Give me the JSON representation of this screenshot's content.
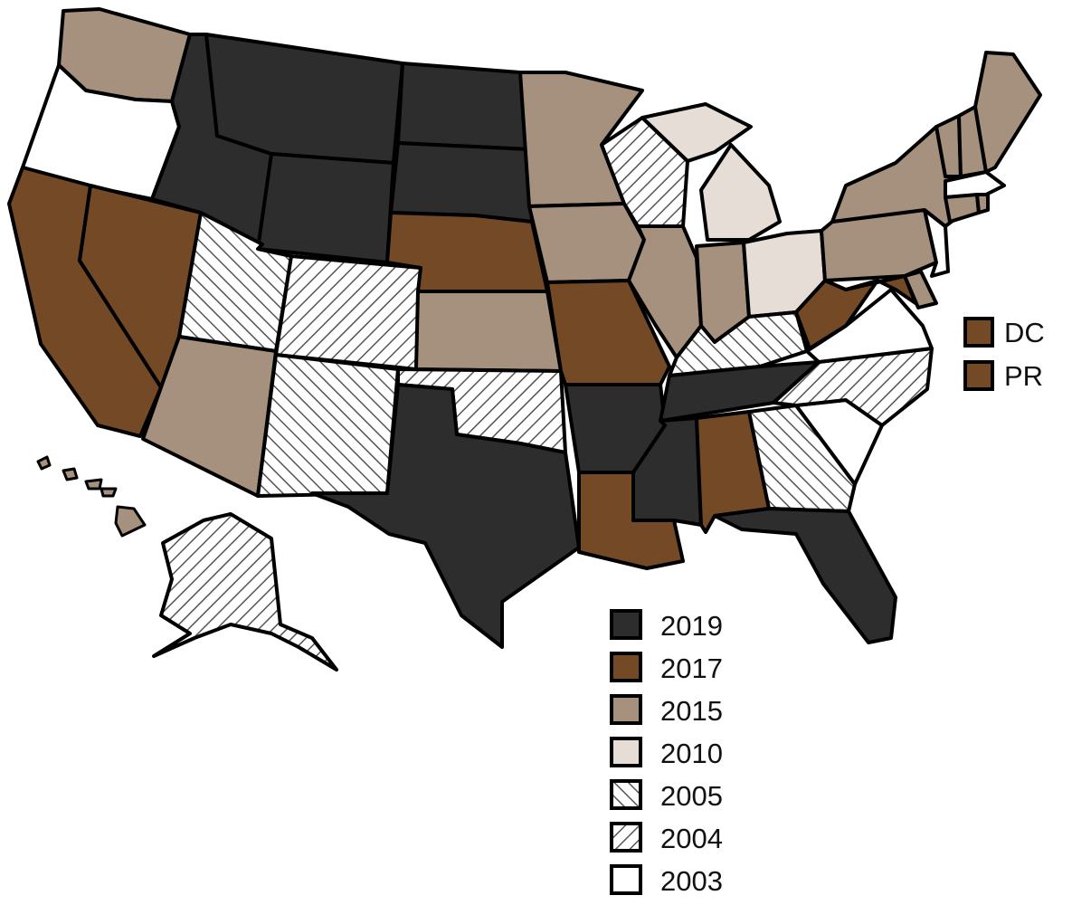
{
  "colors": {
    "2019": "#2d2d2d",
    "2017": "#744a26",
    "2015": "#a6917e",
    "2010": "#e6ddd7",
    "2003": "#ffffff",
    "hatch_line": "#555555",
    "outline": "#000000"
  },
  "fill_patterns": {
    "2005": "diagonal-hatch-up-right",
    "2004": "diagonal-hatch-down-right"
  },
  "legend": [
    {
      "year": "2019",
      "style": "solid"
    },
    {
      "year": "2017",
      "style": "solid"
    },
    {
      "year": "2015",
      "style": "solid"
    },
    {
      "year": "2010",
      "style": "solid"
    },
    {
      "year": "2005",
      "style": "hatch"
    },
    {
      "year": "2004",
      "style": "hatch"
    },
    {
      "year": "2003",
      "style": "solid"
    }
  ],
  "territories": [
    {
      "label": "DC",
      "year": "2017"
    },
    {
      "label": "PR",
      "year": "2017"
    }
  ],
  "state_years": {
    "WA": "2015",
    "OR": "2003",
    "CA": "2017",
    "NV": "2017",
    "ID": "2019",
    "MT": "2019",
    "WY": "2019",
    "UT": "2005",
    "AZ": "2015",
    "CO": "2004",
    "NM": "2005",
    "ND": "2019",
    "SD": "2019",
    "NE": "2017",
    "KS": "2015",
    "OK": "2004",
    "TX": "2019",
    "MN": "2015",
    "IA": "2015",
    "MO": "2017",
    "AR": "2019",
    "LA": "2017",
    "WI": "2004",
    "MI": "2010",
    "IL": "2015",
    "IN": "2015",
    "OH": "2010",
    "KY": "2005",
    "TN": "2019",
    "MS": "2019",
    "AL": "2017",
    "GA": "2005",
    "FL": "2019",
    "SC": "2003",
    "NC": "2004",
    "VA": "2003",
    "WV": "2017",
    "PA": "2015",
    "NY": "2015",
    "MD": "2017",
    "DE": "2015",
    "NJ": "2003",
    "CT": "2015",
    "RI": "2015",
    "MA": "2003",
    "VT": "2015",
    "NH": "2015",
    "ME": "2015",
    "AK": "2004",
    "HI": "2015"
  }
}
